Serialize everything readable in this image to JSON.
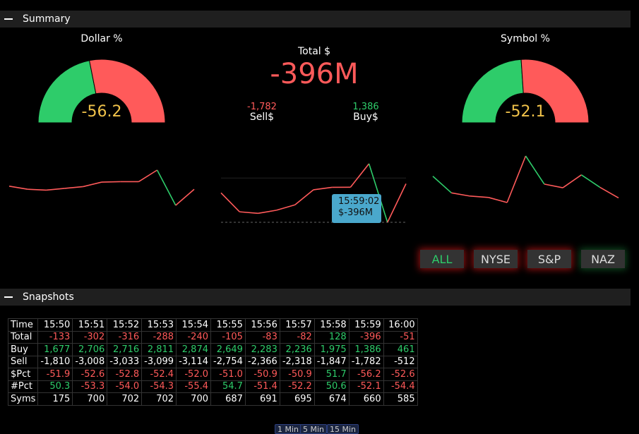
{
  "summary": {
    "title": "Summary"
  },
  "snapshots": {
    "title": "Snapshots"
  },
  "colors": {
    "positive": "#2ecc6a",
    "negative": "#ff5a5a",
    "gauge_value": "#f0c24a",
    "tooltip": "#4aa8cc"
  },
  "dollar_gauge": {
    "label": "Dollar %",
    "value": "-56.2",
    "pct": -56.2
  },
  "symbol_gauge": {
    "label": "Symbol %",
    "value": "-52.1",
    "pct": -52.1
  },
  "total": {
    "label": "Total $",
    "value": "-396M",
    "sell_value": "-1,782",
    "sell_label": "Sell$",
    "buy_value": "1,386",
    "buy_label": "Buy$"
  },
  "tooltip": {
    "time": "15:59:02",
    "value": "$-396M"
  },
  "filters": [
    {
      "label": "ALL",
      "active": true
    },
    {
      "label": "NYSE"
    },
    {
      "label": "S&P"
    },
    {
      "label": "NAZ"
    }
  ],
  "table": {
    "times": [
      "15:50",
      "15:51",
      "15:52",
      "15:53",
      "15:54",
      "15:55",
      "15:56",
      "15:57",
      "15:58",
      "15:59",
      "16:00"
    ],
    "rows": [
      {
        "label": "Total",
        "values": [
          "-133",
          "-302",
          "-316",
          "-288",
          "-240",
          "-105",
          "-83",
          "-82",
          "128",
          "-396",
          "-51"
        ],
        "colored": true
      },
      {
        "label": "Buy",
        "values": [
          "1,677",
          "2,706",
          "2,716",
          "2,811",
          "2,874",
          "2,649",
          "2,283",
          "2,236",
          "1,975",
          "1,386",
          "461"
        ],
        "colored": true
      },
      {
        "label": "Sell",
        "values": [
          "-1,810",
          "-3,008",
          "-3,033",
          "-3,099",
          "-3,114",
          "-2,754",
          "-2,366",
          "-2,318",
          "-1,847",
          "-1,782",
          "-512"
        ],
        "colored": false
      },
      {
        "label": "$Pct",
        "values": [
          "-51.9",
          "-52.6",
          "-52.8",
          "-52.4",
          "-52.0",
          "-51.0",
          "-50.9",
          "-50.9",
          "51.7",
          "-56.2",
          "-52.6"
        ],
        "colored": true
      },
      {
        "label": "#Pct",
        "values": [
          "50.3",
          "-53.3",
          "-54.0",
          "-54.3",
          "-55.4",
          "54.7",
          "-51.4",
          "-52.2",
          "50.6",
          "-52.1",
          "-54.4"
        ],
        "colored": true
      },
      {
        "label": "Syms",
        "values": [
          "175",
          "700",
          "702",
          "702",
          "700",
          "687",
          "691",
          "695",
          "674",
          "660",
          "585"
        ],
        "colored": false
      }
    ],
    "time_label": "Time"
  },
  "timeframes": [
    "1 Min",
    "5 Min",
    "15 Min"
  ]
}
